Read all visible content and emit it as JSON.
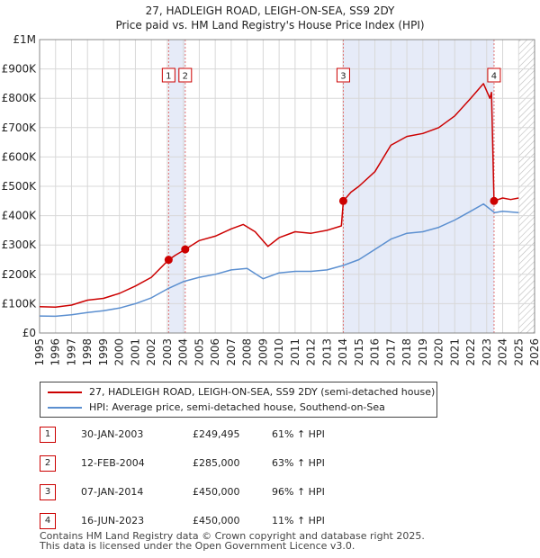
{
  "chart_data": {
    "type": "line",
    "title": "27, HADLEIGH ROAD, LEIGH-ON-SEA, SS9 2DY",
    "subtitle": "Price paid vs. HM Land Registry's House Price Index (HPI)",
    "xlim": [
      1995,
      2026
    ],
    "ylim": [
      0,
      1000000
    ],
    "xticks": [
      1995,
      1996,
      1997,
      1998,
      1999,
      2000,
      2001,
      2002,
      2003,
      2004,
      2005,
      2006,
      2007,
      2008,
      2009,
      2010,
      2011,
      2012,
      2013,
      2014,
      2015,
      2016,
      2017,
      2018,
      2019,
      2020,
      2021,
      2022,
      2023,
      2024,
      2025,
      2026
    ],
    "yticks": [
      {
        "value": 0,
        "label": "£0"
      },
      {
        "value": 100000,
        "label": "£100K"
      },
      {
        "value": 200000,
        "label": "£200K"
      },
      {
        "value": 300000,
        "label": "£300K"
      },
      {
        "value": 400000,
        "label": "£400K"
      },
      {
        "value": 500000,
        "label": "£500K"
      },
      {
        "value": 600000,
        "label": "£600K"
      },
      {
        "value": 700000,
        "label": "£700K"
      },
      {
        "value": 800000,
        "label": "£800K"
      },
      {
        "value": 900000,
        "label": "£900K"
      },
      {
        "value": 1000000,
        "label": "£1M"
      }
    ],
    "series": [
      {
        "name": "27, HADLEIGH ROAD, LEIGH-ON-SEA, SS9 2DY (semi-detached house)",
        "color": "#cc0000",
        "points": [
          [
            1995,
            90000
          ],
          [
            1996,
            88000
          ],
          [
            1997,
            95000
          ],
          [
            1998,
            112000
          ],
          [
            1999,
            118000
          ],
          [
            2000,
            135000
          ],
          [
            2001,
            160000
          ],
          [
            2002,
            190000
          ],
          [
            2003.08,
            249495
          ],
          [
            2003.5,
            265000
          ],
          [
            2004.12,
            285000
          ],
          [
            2005,
            315000
          ],
          [
            2006,
            330000
          ],
          [
            2007,
            355000
          ],
          [
            2007.75,
            370000
          ],
          [
            2008.5,
            345000
          ],
          [
            2009.3,
            295000
          ],
          [
            2010,
            325000
          ],
          [
            2011,
            345000
          ],
          [
            2012,
            340000
          ],
          [
            2013,
            350000
          ],
          [
            2013.9,
            365000
          ],
          [
            2014.02,
            450000
          ],
          [
            2014.5,
            480000
          ],
          [
            2015,
            500000
          ],
          [
            2016,
            550000
          ],
          [
            2017,
            640000
          ],
          [
            2018,
            670000
          ],
          [
            2019,
            680000
          ],
          [
            2020,
            700000
          ],
          [
            2021,
            740000
          ],
          [
            2022,
            800000
          ],
          [
            2022.8,
            850000
          ],
          [
            2023.2,
            800000
          ],
          [
            2023.3,
            820000
          ],
          [
            2023.46,
            450000
          ],
          [
            2024,
            460000
          ],
          [
            2024.5,
            455000
          ],
          [
            2025,
            460000
          ]
        ]
      },
      {
        "name": "HPI: Average price, semi-detached house, Southend-on-Sea",
        "color": "#5b8fd0",
        "points": [
          [
            1995,
            58000
          ],
          [
            1996,
            57000
          ],
          [
            1997,
            62000
          ],
          [
            1998,
            70000
          ],
          [
            1999,
            76000
          ],
          [
            2000,
            85000
          ],
          [
            2001,
            100000
          ],
          [
            2002,
            120000
          ],
          [
            2003,
            150000
          ],
          [
            2004,
            175000
          ],
          [
            2005,
            190000
          ],
          [
            2006,
            200000
          ],
          [
            2007,
            215000
          ],
          [
            2008,
            220000
          ],
          [
            2009,
            185000
          ],
          [
            2010,
            205000
          ],
          [
            2011,
            210000
          ],
          [
            2012,
            210000
          ],
          [
            2013,
            215000
          ],
          [
            2014,
            230000
          ],
          [
            2015,
            250000
          ],
          [
            2016,
            285000
          ],
          [
            2017,
            320000
          ],
          [
            2018,
            340000
          ],
          [
            2019,
            345000
          ],
          [
            2020,
            360000
          ],
          [
            2021,
            385000
          ],
          [
            2022,
            415000
          ],
          [
            2022.8,
            440000
          ],
          [
            2023.5,
            410000
          ],
          [
            2024,
            415000
          ],
          [
            2025,
            410000
          ]
        ]
      }
    ],
    "sales": [
      {
        "n": "1",
        "x": 2003.08,
        "value": 249495
      },
      {
        "n": "2",
        "x": 2004.12,
        "value": 285000
      },
      {
        "n": "3",
        "x": 2014.02,
        "value": 450000
      },
      {
        "n": "4",
        "x": 2023.46,
        "value": 450000
      }
    ],
    "hatched_after": 2025.0
  },
  "legend": {
    "property_label": "27, HADLEIGH ROAD, LEIGH-ON-SEA, SS9 2DY (semi-detached house)",
    "hpi_label": "HPI: Average price, semi-detached house, Southend-on-Sea"
  },
  "table": [
    {
      "n": "1",
      "date": "30-JAN-2003",
      "price": "£249,495",
      "hpi": "61% ↑ HPI"
    },
    {
      "n": "2",
      "date": "12-FEB-2004",
      "price": "£285,000",
      "hpi": "63% ↑ HPI"
    },
    {
      "n": "3",
      "date": "07-JAN-2014",
      "price": "£450,000",
      "hpi": "96% ↑ HPI"
    },
    {
      "n": "4",
      "date": "16-JUN-2023",
      "price": "£450,000",
      "hpi": "11% ↑ HPI"
    }
  ],
  "footer": {
    "line1": "Contains HM Land Registry data © Crown copyright and database right 2025.",
    "line2": "This data is licensed under the Open Government Licence v3.0."
  }
}
